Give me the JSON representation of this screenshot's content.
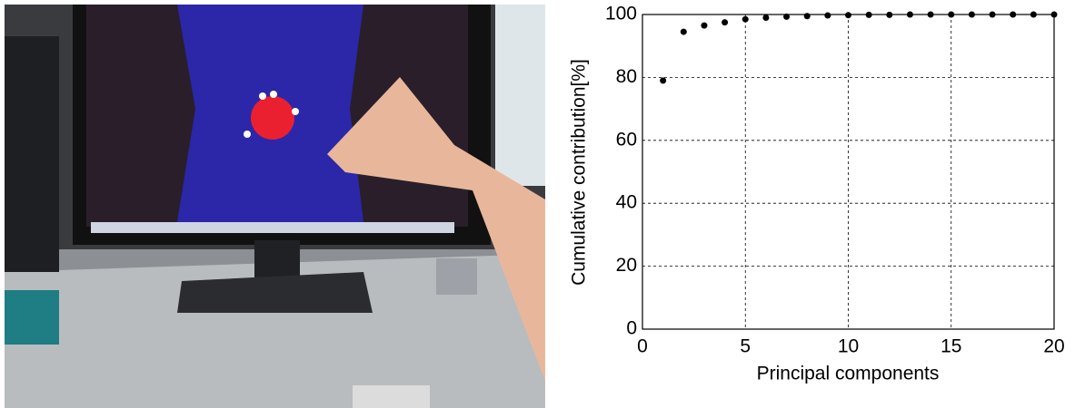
{
  "chart_data": {
    "type": "scatter",
    "xlabel": "Principal components",
    "ylabel": "Cumulative contribution[%]",
    "x": [
      1,
      2,
      3,
      4,
      5,
      6,
      7,
      8,
      9,
      10,
      11,
      12,
      13,
      14,
      15,
      16,
      17,
      18,
      19,
      20
    ],
    "values": [
      79,
      94.5,
      96.5,
      97.5,
      98.5,
      99,
      99.3,
      99.5,
      99.7,
      99.8,
      99.9,
      99.9,
      100,
      100,
      100,
      100,
      100,
      100,
      100,
      100
    ],
    "color": "#000000",
    "xlim": [
      0,
      20
    ],
    "ylim": [
      0,
      100
    ],
    "xticks": [
      0,
      5,
      10,
      15,
      20
    ],
    "yticks": [
      0,
      20,
      40,
      60,
      80,
      100
    ],
    "grid": true
  }
}
